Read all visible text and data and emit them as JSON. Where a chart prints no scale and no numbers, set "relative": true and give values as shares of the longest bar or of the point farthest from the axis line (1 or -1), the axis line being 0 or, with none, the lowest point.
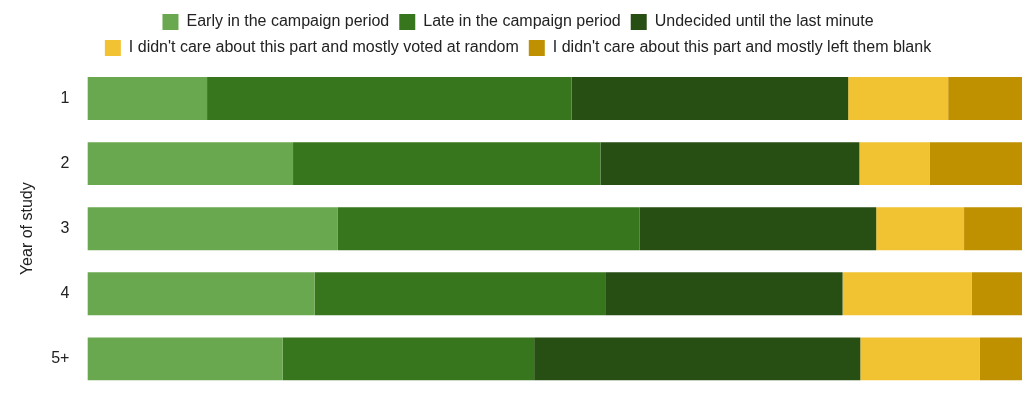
{
  "chart_data": {
    "type": "bar",
    "orientation": "horizontal",
    "stacked": true,
    "relative": true,
    "ylabel": "Year of study",
    "legend": "top",
    "categories": [
      "1",
      "2",
      "3",
      "4",
      "5+"
    ],
    "series": [
      {
        "name": "Early in the campaign period",
        "color": "#6aa84f",
        "values": [
          0.128,
          0.22,
          0.268,
          0.243,
          0.209
        ]
      },
      {
        "name": "Late in the campaign period",
        "color": "#38761d",
        "values": [
          0.39,
          0.329,
          0.323,
          0.311,
          0.269
        ]
      },
      {
        "name": "Undecided until the last minute",
        "color": "#274e13",
        "values": [
          0.296,
          0.277,
          0.253,
          0.254,
          0.349
        ]
      },
      {
        "name": "I didn't care about this part and mostly voted at random",
        "color": "#f1c232",
        "values": [
          0.107,
          0.075,
          0.094,
          0.138,
          0.128
        ]
      },
      {
        "name": "I didn't care about this part and mostly left them blank",
        "color": "#bf9000",
        "values": [
          0.079,
          0.099,
          0.062,
          0.054,
          0.045
        ]
      }
    ]
  }
}
